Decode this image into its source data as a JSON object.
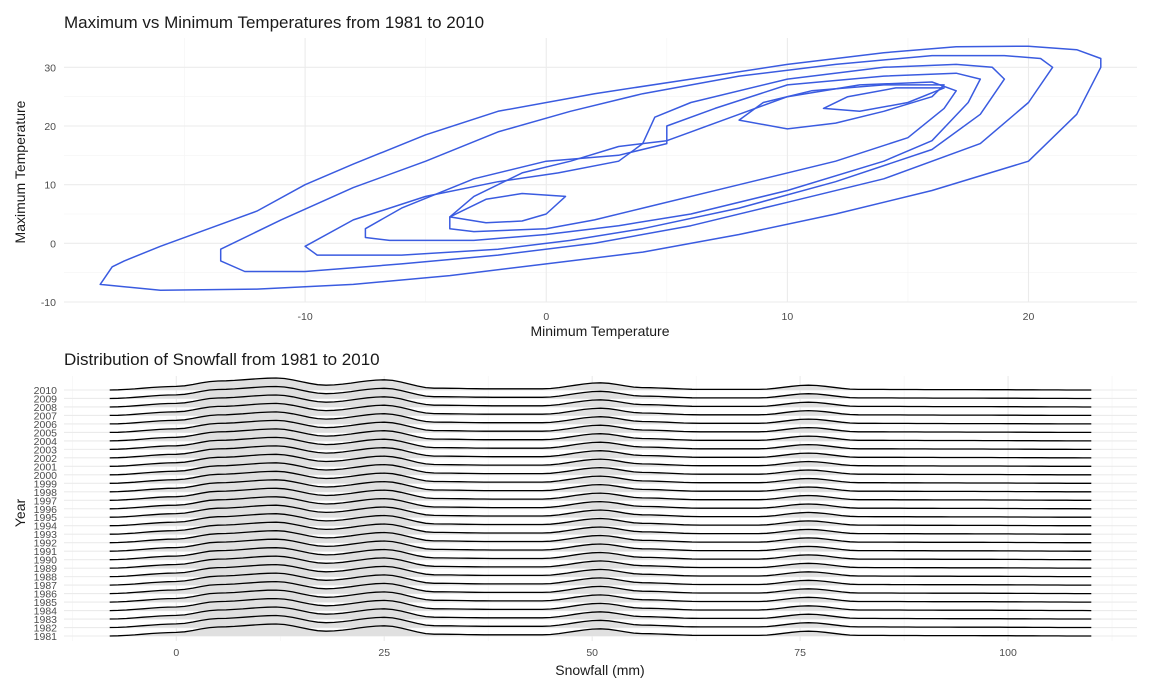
{
  "chart_data": [
    {
      "type": "contour",
      "title": "Maximum vs Minimum Temperatures from 1981 to 2010",
      "xlabel": "Minimum Temperature",
      "ylabel": "Maximum Temperature",
      "xlim": [
        -20,
        24.5
      ],
      "ylim": [
        -10,
        35
      ],
      "x_ticks": [
        -10,
        0,
        10,
        20
      ],
      "y_ticks": [
        -10,
        0,
        10,
        20,
        30
      ],
      "x_tick_labels": [
        "-10",
        "0",
        "10",
        "20"
      ],
      "y_tick_labels": [
        "-10",
        "0",
        "10",
        "20",
        "30"
      ],
      "grid": true,
      "line_color": "#3a5be0",
      "contours": [
        [
          [
            -18.5,
            -7
          ],
          [
            -16,
            -8
          ],
          [
            -12,
            -7.8
          ],
          [
            -8,
            -7
          ],
          [
            -4,
            -5.5
          ],
          [
            0,
            -3.5
          ],
          [
            4,
            -1.5
          ],
          [
            8,
            1.5
          ],
          [
            12,
            5
          ],
          [
            16,
            9
          ],
          [
            20,
            14
          ],
          [
            22,
            22
          ],
          [
            23,
            30
          ],
          [
            23,
            31.5
          ],
          [
            22,
            33
          ],
          [
            20,
            33.6
          ],
          [
            17,
            33.5
          ],
          [
            14,
            32.5
          ],
          [
            10,
            30.5
          ],
          [
            6,
            28
          ],
          [
            2,
            25.5
          ],
          [
            -2,
            22.5
          ],
          [
            -5,
            18.5
          ],
          [
            -8,
            13.5
          ],
          [
            -10,
            10
          ],
          [
            -12,
            5.5
          ],
          [
            -14,
            2.5
          ],
          [
            -16,
            -0.5
          ],
          [
            -17.5,
            -3
          ],
          [
            -18,
            -4
          ],
          [
            -18.5,
            -7
          ]
        ],
        [
          [
            -13.5,
            -3
          ],
          [
            -12.5,
            -4.8
          ],
          [
            -10,
            -4.8
          ],
          [
            -6,
            -3.5
          ],
          [
            -2,
            -2
          ],
          [
            2,
            0
          ],
          [
            6,
            3
          ],
          [
            10,
            7
          ],
          [
            14,
            11
          ],
          [
            18,
            17
          ],
          [
            20,
            24
          ],
          [
            21,
            30
          ],
          [
            20.5,
            31.5
          ],
          [
            19,
            32
          ],
          [
            16,
            32
          ],
          [
            12,
            30.5
          ],
          [
            8,
            28.5
          ],
          [
            4,
            25.5
          ],
          [
            1,
            22.5
          ],
          [
            -2,
            19
          ],
          [
            -5,
            14
          ],
          [
            -8,
            9.5
          ],
          [
            -11,
            4
          ],
          [
            -13.5,
            -1
          ],
          [
            -13.5,
            -3
          ]
        ],
        [
          [
            -10,
            -0.5
          ],
          [
            -9.5,
            -2
          ],
          [
            -6,
            -2
          ],
          [
            -2,
            -1
          ],
          [
            1,
            0.5
          ],
          [
            4,
            2.5
          ],
          [
            8,
            6
          ],
          [
            12,
            10.5
          ],
          [
            16,
            16
          ],
          [
            18,
            22
          ],
          [
            19,
            28
          ],
          [
            18.5,
            30
          ],
          [
            17,
            30.5
          ],
          [
            14,
            30
          ],
          [
            10,
            28
          ],
          [
            6,
            24
          ],
          [
            4.5,
            21.5
          ],
          [
            4,
            17
          ],
          [
            3,
            14
          ],
          [
            0.5,
            12
          ],
          [
            -2,
            10.5
          ],
          [
            -5,
            8
          ],
          [
            -8,
            4
          ],
          [
            -10,
            -0.5
          ]
        ],
        [
          [
            -7.5,
            1
          ],
          [
            -6.5,
            0.5
          ],
          [
            -3,
            0.5
          ],
          [
            0,
            1.5
          ],
          [
            3,
            3
          ],
          [
            6,
            5
          ],
          [
            10,
            9
          ],
          [
            14,
            14
          ],
          [
            16,
            17.5
          ],
          [
            17.5,
            24
          ],
          [
            18,
            28
          ],
          [
            17,
            29
          ],
          [
            14,
            28.5
          ],
          [
            10,
            27
          ],
          [
            7,
            23
          ],
          [
            5,
            20
          ],
          [
            5,
            17
          ],
          [
            3,
            15
          ],
          [
            0,
            14
          ],
          [
            -3,
            11
          ],
          [
            -6,
            6
          ],
          [
            -7.5,
            2.5
          ],
          [
            -7.5,
            1
          ]
        ],
        [
          [
            -4,
            2.5
          ],
          [
            -3,
            2
          ],
          [
            0,
            2.5
          ],
          [
            2,
            4
          ],
          [
            4,
            6
          ],
          [
            8,
            10
          ],
          [
            12,
            14
          ],
          [
            15,
            18
          ],
          [
            16.5,
            23
          ],
          [
            17,
            26
          ],
          [
            16,
            27.5
          ],
          [
            13,
            27
          ],
          [
            10,
            25
          ],
          [
            8,
            22
          ],
          [
            6,
            19
          ],
          [
            5,
            17.5
          ],
          [
            3,
            16.5
          ],
          [
            1,
            14
          ],
          [
            -1,
            12
          ],
          [
            -3,
            8
          ],
          [
            -4,
            4.5
          ],
          [
            -4,
            2.5
          ]
        ],
        [
          [
            -2.5,
            3.5
          ],
          [
            -1,
            3.8
          ],
          [
            0,
            5
          ],
          [
            0.8,
            8
          ],
          [
            -1,
            8.5
          ],
          [
            -2.5,
            7.5
          ],
          [
            -4,
            4.5
          ],
          [
            -2.5,
            3.5
          ]
        ],
        [
          [
            8,
            21
          ],
          [
            10,
            19.5
          ],
          [
            12,
            20.5
          ],
          [
            14,
            22.5
          ],
          [
            16,
            25
          ],
          [
            16.5,
            27
          ],
          [
            14,
            27
          ],
          [
            11,
            26
          ],
          [
            9,
            24
          ],
          [
            8,
            21
          ]
        ],
        [
          [
            11.5,
            23
          ],
          [
            13,
            22.5
          ],
          [
            15,
            24
          ],
          [
            16.5,
            26.5
          ],
          [
            14.5,
            26.5
          ],
          [
            12.5,
            25
          ],
          [
            11.5,
            23
          ]
        ]
      ]
    },
    {
      "type": "ridgeline",
      "title": "Distribution of Snowfall from 1981 to 2010",
      "xlabel": "Snowfall (mm)",
      "ylabel": "Year",
      "xlim": [
        -13.5,
        115.5
      ],
      "x_ticks": [
        0,
        25,
        50,
        75,
        100
      ],
      "x_tick_labels": [
        "0",
        "25",
        "50",
        "75",
        "100"
      ],
      "x_range": [
        -8,
        110
      ],
      "categories": [
        "1981",
        "1982",
        "1983",
        "1984",
        "1985",
        "1986",
        "1987",
        "1988",
        "1989",
        "1990",
        "1991",
        "1992",
        "1993",
        "1994",
        "1995",
        "1996",
        "1997",
        "1998",
        "1999",
        "2000",
        "2001",
        "2002",
        "2003",
        "2004",
        "2005",
        "2006",
        "2007",
        "2008",
        "2009",
        "2010"
      ],
      "density_profile": [
        {
          "x": -8,
          "y": 0.0
        },
        {
          "x": 0,
          "y": 0.3
        },
        {
          "x": 5,
          "y": 0.75
        },
        {
          "x": 12,
          "y": 1.0
        },
        {
          "x": 18,
          "y": 0.4
        },
        {
          "x": 25,
          "y": 0.85
        },
        {
          "x": 31,
          "y": 0.15
        },
        {
          "x": 38,
          "y": 0.1
        },
        {
          "x": 44,
          "y": 0.1
        },
        {
          "x": 51,
          "y": 0.6
        },
        {
          "x": 56,
          "y": 0.2
        },
        {
          "x": 63,
          "y": 0.05
        },
        {
          "x": 70,
          "y": 0.05
        },
        {
          "x": 76,
          "y": 0.4
        },
        {
          "x": 82,
          "y": 0.05
        },
        {
          "x": 95,
          "y": 0.03
        },
        {
          "x": 110,
          "y": 0.0
        }
      ],
      "grid": true,
      "fill_color": "#e0e0e0",
      "line_color": "#000000"
    }
  ]
}
